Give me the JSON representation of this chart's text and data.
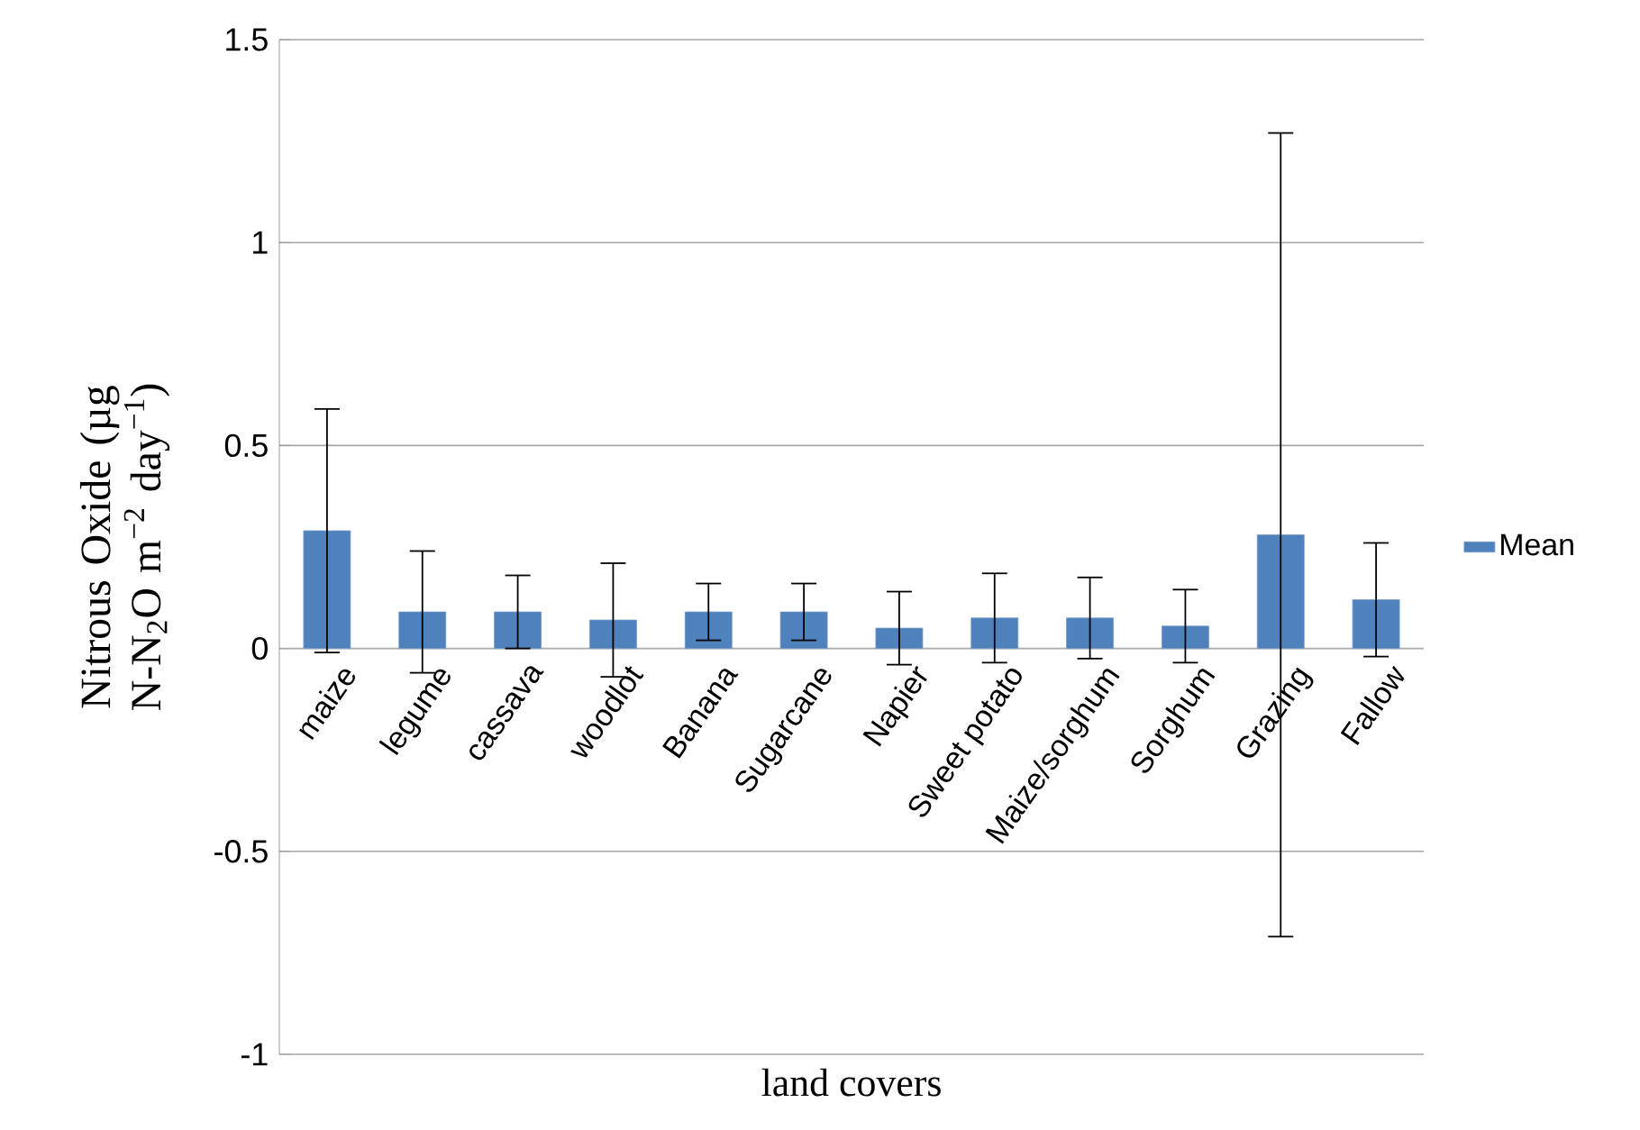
{
  "chart_data": {
    "type": "bar",
    "categories": [
      "maize",
      "legume",
      "cassava",
      "woodlot",
      "Banana",
      "Sugarcane",
      "Napier",
      "Sweet potato",
      "Maize/sorghum",
      "Sorghum",
      "Grazing",
      "Fallow"
    ],
    "series": [
      {
        "name": "Mean",
        "color": "#4f81bd",
        "values": [
          0.29,
          0.09,
          0.09,
          0.07,
          0.09,
          0.09,
          0.05,
          0.075,
          0.075,
          0.055,
          0.28,
          0.12
        ],
        "errors": [
          0.3,
          0.15,
          0.09,
          0.14,
          0.07,
          0.07,
          0.09,
          0.11,
          0.1,
          0.09,
          0.99,
          0.14
        ]
      }
    ],
    "xlabel": "land covers",
    "ylabel": "Nitrous Oxide (µg N-N$_{2}$O m$^{−2}$ day$^{−1}$)",
    "ylim": [
      -1,
      1.5
    ],
    "yticks": [
      -1,
      -0.5,
      0,
      0.5,
      1,
      1.5
    ],
    "grid": "y",
    "legend": "right"
  }
}
